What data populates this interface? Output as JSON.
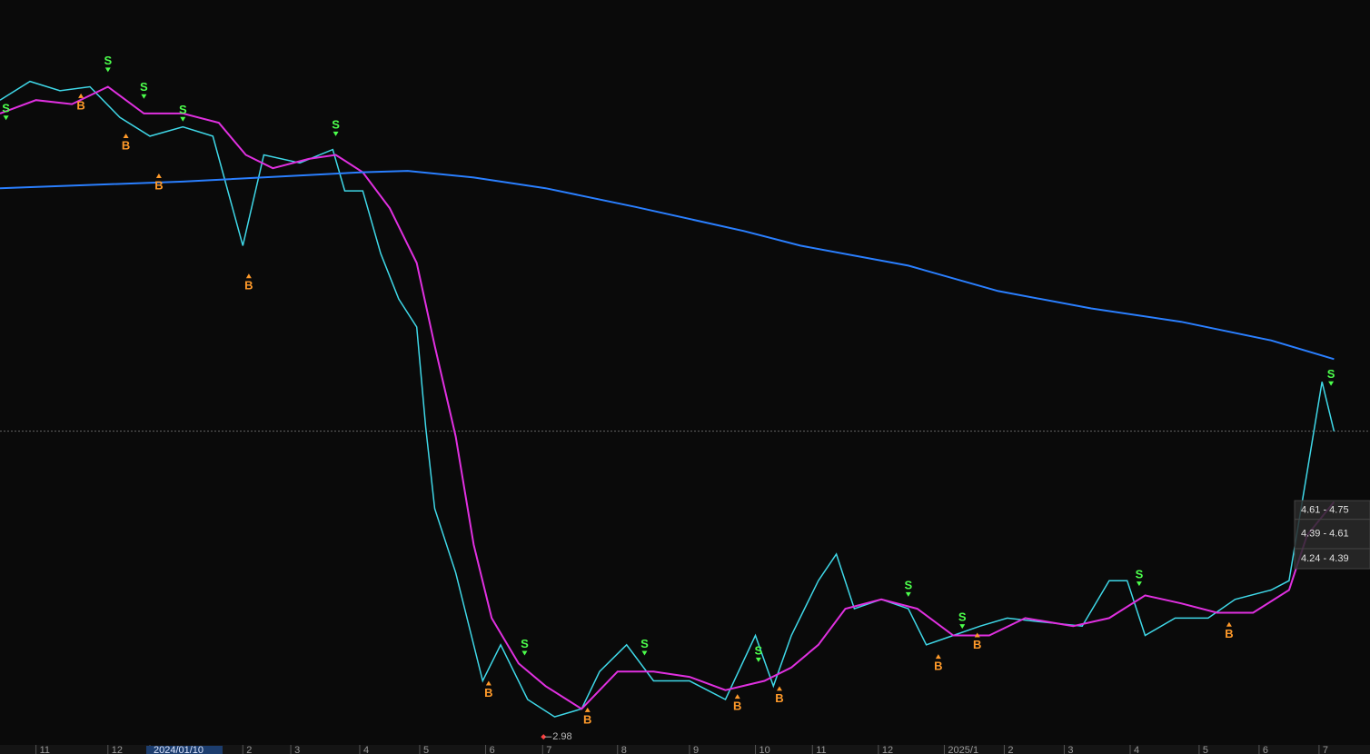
{
  "chart_data": {
    "type": "line",
    "xlim": [
      0,
      457
    ],
    "ylim": [
      2.92,
      8.5
    ],
    "xticks": [
      {
        "value": 12,
        "label": "11"
      },
      {
        "value": 36,
        "label": "12"
      },
      {
        "value": 50,
        "label": "2024/01/10"
      },
      {
        "value": 81,
        "label": "2"
      },
      {
        "value": 97,
        "label": "3"
      },
      {
        "value": 120,
        "label": "4"
      },
      {
        "value": 140,
        "label": "5"
      },
      {
        "value": 162,
        "label": "6"
      },
      {
        "value": 181,
        "label": "7"
      },
      {
        "value": 206,
        "label": "8"
      },
      {
        "value": 230,
        "label": "9"
      },
      {
        "value": 252,
        "label": "10"
      },
      {
        "value": 271,
        "label": "11"
      },
      {
        "value": 293,
        "label": "12"
      },
      {
        "value": 315,
        "label": "2025/1"
      },
      {
        "value": 335,
        "label": "2"
      },
      {
        "value": 355,
        "label": "3"
      },
      {
        "value": 377,
        "label": "4"
      },
      {
        "value": 400,
        "label": "5"
      },
      {
        "value": 420,
        "label": "6"
      },
      {
        "value": 440,
        "label": "7"
      }
    ],
    "series": [
      {
        "color": "#3fd8e8",
        "x": [
          0,
          10,
          20,
          30,
          40,
          50,
          61,
          71,
          81,
          88,
          100,
          111,
          115,
          121,
          127,
          133,
          139,
          142,
          145,
          152,
          161,
          167,
          176,
          185,
          194,
          200,
          209,
          218,
          230,
          242,
          252,
          258,
          264,
          273,
          279,
          285,
          294,
          303,
          309,
          318,
          327,
          336,
          348,
          361,
          370,
          376,
          382,
          392,
          403,
          412,
          424,
          430,
          436,
          441,
          445
        ],
        "values": [
          7.75,
          7.89,
          7.82,
          7.85,
          7.62,
          7.48,
          7.55,
          7.48,
          6.66,
          7.34,
          7.28,
          7.38,
          7.07,
          7.07,
          6.6,
          6.26,
          6.05,
          5.3,
          4.69,
          4.21,
          3.4,
          3.67,
          3.26,
          3.13,
          3.19,
          3.47,
          3.67,
          3.4,
          3.4,
          3.26,
          3.74,
          3.36,
          3.74,
          4.15,
          4.35,
          3.94,
          4.01,
          3.94,
          3.67,
          3.74,
          3.81,
          3.87,
          3.84,
          3.81,
          4.15,
          4.15,
          3.74,
          3.87,
          3.87,
          4.01,
          4.08,
          4.15,
          4.96,
          5.64,
          5.27
        ]
      },
      {
        "color": "#e030e0",
        "x": [
          0,
          12,
          24,
          36,
          48,
          61,
          73,
          82,
          91,
          103,
          112,
          121,
          130,
          139,
          145,
          152,
          158,
          164,
          173,
          182,
          194,
          206,
          218,
          230,
          242,
          255,
          264,
          273,
          282,
          294,
          306,
          318,
          330,
          342,
          358,
          370,
          382,
          394,
          406,
          418,
          430,
          436,
          445
        ],
        "values": [
          7.65,
          7.75,
          7.72,
          7.85,
          7.65,
          7.65,
          7.58,
          7.34,
          7.24,
          7.31,
          7.34,
          7.21,
          6.94,
          6.53,
          5.91,
          5.23,
          4.42,
          3.87,
          3.53,
          3.36,
          3.19,
          3.47,
          3.47,
          3.43,
          3.33,
          3.4,
          3.5,
          3.67,
          3.94,
          4.01,
          3.94,
          3.74,
          3.74,
          3.87,
          3.81,
          3.87,
          4.04,
          3.98,
          3.91,
          3.91,
          4.08,
          4.49,
          4.74
        ]
      },
      {
        "color": "#2a7fff",
        "x": [
          0,
          61,
          121,
          136,
          158,
          182,
          212,
          248,
          267,
          303,
          333,
          364,
          394,
          424,
          445
        ],
        "values": [
          7.09,
          7.14,
          7.21,
          7.22,
          7.17,
          7.09,
          6.95,
          6.77,
          6.66,
          6.51,
          6.32,
          6.19,
          6.09,
          5.95,
          5.81
        ]
      }
    ],
    "signals": [
      {
        "label": "B",
        "x": 27,
        "value": 7.8
      },
      {
        "label": "B",
        "x": 42,
        "value": 7.5
      },
      {
        "label": "B",
        "x": 53,
        "value": 7.2
      },
      {
        "label": "B",
        "x": 83,
        "value": 6.45
      },
      {
        "label": "B",
        "x": 163,
        "value": 3.4
      },
      {
        "label": "B",
        "x": 196,
        "value": 3.2
      },
      {
        "label": "B",
        "x": 246,
        "value": 3.3
      },
      {
        "label": "B",
        "x": 260,
        "value": 3.36
      },
      {
        "label": "B",
        "x": 313,
        "value": 3.6
      },
      {
        "label": "B",
        "x": 326,
        "value": 3.76
      },
      {
        "label": "B",
        "x": 410,
        "value": 3.84
      },
      {
        "label": "S",
        "x": 2,
        "value": 7.6
      },
      {
        "label": "S",
        "x": 36,
        "value": 7.96
      },
      {
        "label": "S",
        "x": 48,
        "value": 7.76
      },
      {
        "label": "S",
        "x": 61,
        "value": 7.59
      },
      {
        "label": "S",
        "x": 112,
        "value": 7.48
      },
      {
        "label": "S",
        "x": 175,
        "value": 3.59
      },
      {
        "label": "S",
        "x": 215,
        "value": 3.59
      },
      {
        "label": "S",
        "x": 253,
        "value": 3.54
      },
      {
        "label": "S",
        "x": 303,
        "value": 4.03
      },
      {
        "label": "S",
        "x": 321,
        "value": 3.79
      },
      {
        "label": "S",
        "x": 380,
        "value": 4.11
      },
      {
        "label": "S",
        "x": 444,
        "value": 5.61
      }
    ],
    "low": {
      "x": 181,
      "value": 2.98,
      "label": "2.98"
    },
    "last_price": 5.27,
    "price_ranges": [
      {
        "low": 4.61,
        "high": 4.75,
        "label": "4.61 - 4.75"
      },
      {
        "low": 4.39,
        "high": 4.61,
        "label": "4.39 - 4.61"
      },
      {
        "low": 4.24,
        "high": 4.39,
        "label": "4.24 - 4.39"
      }
    ]
  }
}
